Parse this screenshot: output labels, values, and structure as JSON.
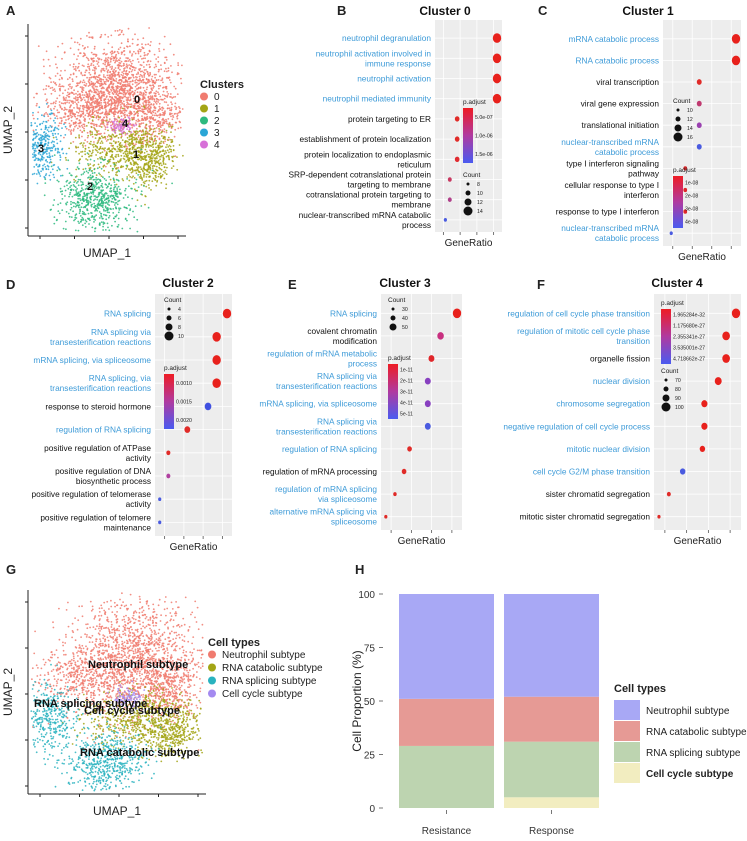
{
  "panel_labels": {
    "a": "A",
    "b": "B",
    "c": "C",
    "d": "D",
    "e": "E",
    "f": "F",
    "g": "G",
    "h": "H"
  },
  "umap_top": {
    "xlabel": "UMAP_1",
    "ylabel": "UMAP_2",
    "legend_title": "Clusters",
    "legend": [
      {
        "label": "0",
        "color": "#F07B6F"
      },
      {
        "label": "1",
        "color": "#A3A515"
      },
      {
        "label": "2",
        "color": "#2DBA7F"
      },
      {
        "label": "3",
        "color": "#2AA6D6"
      },
      {
        "label": "4",
        "color": "#D771D8"
      }
    ],
    "overlay": [
      "0",
      "1",
      "2",
      "3",
      "4"
    ]
  },
  "umap_bottom": {
    "xlabel": "UMAP_1",
    "ylabel": "UMAP_2",
    "legend_title": "Cell types",
    "legend": [
      {
        "label": "Neutrophil subtype",
        "color": "#F07B6F"
      },
      {
        "label": "RNA catabolic subtype",
        "color": "#A3A515"
      },
      {
        "label": "RNA splicing subtype",
        "color": "#2AB3BF"
      },
      {
        "label": "Cell cycle subtype",
        "color": "#A48AF0"
      }
    ],
    "overlay": [
      "Neutrophil subtype",
      "Cell cycle subtype",
      "RNA catabolic subtype",
      "RNA splicing subtype"
    ]
  },
  "chart_data": [
    {
      "type": "scatter",
      "title": "Cluster 0",
      "xlabel": "GeneRatio",
      "terms": [
        {
          "label": "neutrophil degranulation",
          "x": 4.0,
          "size": 14,
          "color": "#E8211C",
          "blue": true
        },
        {
          "label": "neutrophil activation involved in immune response",
          "x": 4.0,
          "size": 14,
          "color": "#E8211C",
          "blue": true
        },
        {
          "label": "neutrophil activation",
          "x": 4.0,
          "size": 14,
          "color": "#E8211C",
          "blue": true
        },
        {
          "label": "neutrophil mediated immunity",
          "x": 4.0,
          "size": 14,
          "color": "#E8211C",
          "blue": true
        },
        {
          "label": "protein targeting to ER",
          "x": 1.3,
          "size": 9,
          "color": "#E02B28",
          "blue": false
        },
        {
          "label": "establishment of protein localization",
          "x": 1.3,
          "size": 9,
          "color": "#E02B28",
          "blue": false
        },
        {
          "label": "protein localization to endoplasmic reticulum",
          "x": 1.3,
          "size": 9,
          "color": "#E02B30",
          "blue": false
        },
        {
          "label": "SRP-dependent cotranslational protein targeting to membrane",
          "x": 0.8,
          "size": 8,
          "color": "#C83860",
          "blue": false
        },
        {
          "label": "cotranslational protein targeting to membrane",
          "x": 0.8,
          "size": 8,
          "color": "#B0408A",
          "blue": false
        },
        {
          "label": "nuclear-transcribed mRNA catabolic process",
          "x": 0.5,
          "size": 7,
          "color": "#4A5BE0",
          "blue": false
        }
      ],
      "legend_color_title": "p.adjust",
      "legend_color_ticks": [
        "5.0e-07",
        "1.0e-06",
        "1.5e-06"
      ],
      "legend_size_title": "Count",
      "legend_size_ticks": [
        "8",
        "10",
        "12",
        "14"
      ]
    },
    {
      "type": "scatter",
      "title": "Cluster 1",
      "xlabel": "GeneRatio",
      "terms": [
        {
          "label": "mRNA catabolic process",
          "x": 4.0,
          "size": 16,
          "color": "#E8211C",
          "blue": true
        },
        {
          "label": "RNA catabolic process",
          "x": 4.0,
          "size": 16,
          "color": "#E8211C",
          "blue": true
        },
        {
          "label": "viral transcription",
          "x": 1.9,
          "size": 10,
          "color": "#E02B28",
          "blue": false
        },
        {
          "label": "viral gene expression",
          "x": 1.9,
          "size": 10,
          "color": "#C03A70",
          "blue": false
        },
        {
          "label": "translational initiation",
          "x": 1.9,
          "size": 10,
          "color": "#9A40B0",
          "blue": false
        },
        {
          "label": "nuclear-transcribed mRNA catabolic process",
          "x": 1.9,
          "size": 10,
          "color": "#4A5BE0",
          "blue": true
        },
        {
          "label": "type I interferon signaling pathway",
          "x": 1.1,
          "size": 8,
          "color": "#E0262A",
          "blue": false
        },
        {
          "label": "cellular response to type I interferon",
          "x": 1.1,
          "size": 8,
          "color": "#E0262A",
          "blue": false
        },
        {
          "label": "response to type I interferon",
          "x": 1.1,
          "size": 8,
          "color": "#E0262A",
          "blue": false
        },
        {
          "label": "nuclear-transcribed mRNA catabolic process",
          "x": 0.3,
          "size": 7,
          "color": "#4A5BE0",
          "blue": true
        }
      ],
      "legend_color_title": "p.adjust",
      "legend_color_ticks": [
        "1e-08",
        "2e-08",
        "3e-08",
        "4e-08"
      ],
      "legend_size_title": "Count",
      "legend_size_ticks": [
        "10",
        "12",
        "14",
        "16"
      ]
    },
    {
      "type": "scatter",
      "title": "Cluster 2",
      "xlabel": "GeneRatio",
      "terms": [
        {
          "label": "RNA splicing",
          "x": 4.0,
          "size": 10,
          "color": "#E8211C",
          "blue": true
        },
        {
          "label": "RNA splicing via transesterification reactions",
          "x": 3.4,
          "size": 10,
          "color": "#E8211C",
          "blue": true
        },
        {
          "label": "mRNA splicing, via spliceosome",
          "x": 3.4,
          "size": 10,
          "color": "#E8211C",
          "blue": true
        },
        {
          "label": "RNA splicing, via transesterification reactions",
          "x": 3.4,
          "size": 10,
          "color": "#E8211C",
          "blue": true
        },
        {
          "label": "response to steroid hormone",
          "x": 2.9,
          "size": 8,
          "color": "#4050E0",
          "blue": false
        },
        {
          "label": "regulation of RNA splicing",
          "x": 1.7,
          "size": 7,
          "color": "#E02B28",
          "blue": true
        },
        {
          "label": "positive regulation of ATPase activity",
          "x": 0.6,
          "size": 5,
          "color": "#E02B28",
          "blue": false
        },
        {
          "label": "positive regulation of DNA biosynthetic process",
          "x": 0.6,
          "size": 5,
          "color": "#B040A0",
          "blue": false
        },
        {
          "label": "positive regulation of telomerase activity",
          "x": 0.1,
          "size": 4,
          "color": "#4A5BE0",
          "blue": false
        },
        {
          "label": "positive regulation of telomere maintenance",
          "x": 0.1,
          "size": 4,
          "color": "#4A5BE0",
          "blue": false
        }
      ],
      "legend_color_title": "p.adjust",
      "legend_color_ticks": [
        "0.0010",
        "0.0015",
        "0.0020"
      ],
      "legend_size_title": "Count",
      "legend_size_ticks": [
        "4",
        "6",
        "8",
        "10"
      ]
    },
    {
      "type": "scatter",
      "title": "Cluster 3",
      "xlabel": "GeneRatio",
      "terms": [
        {
          "label": "RNA splicing",
          "x": 4.0,
          "size": 60,
          "color": "#E8211C",
          "blue": true
        },
        {
          "label": "covalent chromatin modification",
          "x": 3.1,
          "size": 45,
          "color": "#C83080",
          "blue": false
        },
        {
          "label": "regulation of mRNA metabolic process",
          "x": 2.6,
          "size": 40,
          "color": "#E0262A",
          "blue": true
        },
        {
          "label": "RNA splicing via transesterification reactions",
          "x": 2.4,
          "size": 40,
          "color": "#8840C0",
          "blue": true
        },
        {
          "label": "mRNA splicing, via spliceosome",
          "x": 2.4,
          "size": 40,
          "color": "#8840C0",
          "blue": true
        },
        {
          "label": "RNA splicing via transesterification reactions",
          "x": 2.4,
          "size": 40,
          "color": "#4A5BE0",
          "blue": true
        },
        {
          "label": "regulation of RNA splicing",
          "x": 1.4,
          "size": 30,
          "color": "#E02B28",
          "blue": true
        },
        {
          "label": "regulation of mRNA processing",
          "x": 1.1,
          "size": 30,
          "color": "#E02B28",
          "blue": false
        },
        {
          "label": "regulation of mRNA splicing via spliceosome",
          "x": 0.6,
          "size": 20,
          "color": "#E02B28",
          "blue": true
        },
        {
          "label": "alternative mRNA splicing via spliceosome",
          "x": 0.1,
          "size": 18,
          "color": "#E02B28",
          "blue": true
        }
      ],
      "legend_color_title": "p.adjust",
      "legend_color_ticks": [
        "1e-11",
        "2e-11",
        "3e-11",
        "4e-11",
        "5e-11"
      ],
      "legend_size_title": "Count",
      "legend_size_ticks": [
        "30",
        "40",
        "50"
      ]
    },
    {
      "type": "scatter",
      "title": "Cluster 4",
      "xlabel": "GeneRatio",
      "terms": [
        {
          "label": "regulation of cell cycle phase transition",
          "x": 4.0,
          "size": 100,
          "color": "#E8211C",
          "blue": true
        },
        {
          "label": "regulation of mitotic cell cycle phase transition",
          "x": 3.5,
          "size": 95,
          "color": "#E8211C",
          "blue": true
        },
        {
          "label": "organelle fission",
          "x": 3.5,
          "size": 95,
          "color": "#E8211C",
          "blue": false
        },
        {
          "label": "nuclear division",
          "x": 3.1,
          "size": 90,
          "color": "#E8211C",
          "blue": true
        },
        {
          "label": "chromosome segregation",
          "x": 2.4,
          "size": 85,
          "color": "#E8211C",
          "blue": true
        },
        {
          "label": "negative regulation of cell cycle process",
          "x": 2.4,
          "size": 85,
          "color": "#E8211C",
          "blue": true
        },
        {
          "label": "mitotic nuclear division",
          "x": 2.3,
          "size": 80,
          "color": "#E8211C",
          "blue": true
        },
        {
          "label": "cell cycle G2/M phase transition",
          "x": 1.3,
          "size": 80,
          "color": "#4A5BE0",
          "blue": true
        },
        {
          "label": "sister chromatid segregation",
          "x": 0.6,
          "size": 70,
          "color": "#E02B28",
          "blue": false
        },
        {
          "label": "mitotic sister chromatid segregation",
          "x": 0.1,
          "size": 65,
          "color": "#E02B28",
          "blue": false
        }
      ],
      "legend_color_title": "p.adjust",
      "legend_color_ticks": [
        "1.965284e-32",
        "1.175680e-27",
        "2.355341e-27",
        "3.535001e-27",
        "4.718662e-27"
      ],
      "legend_size_title": "Count",
      "legend_size_ticks": [
        "70",
        "80",
        "90",
        "100"
      ]
    },
    {
      "type": "bar",
      "stacked": true,
      "xlabel": "",
      "ylabel": "Cell Proportion (%)",
      "categories": [
        "Resistance",
        "Response"
      ],
      "ylim": [
        0,
        100
      ],
      "yticks": [
        "0",
        "25",
        "50",
        "75",
        "100"
      ],
      "legend_title": "Cell types",
      "series": [
        {
          "name": "Cell cycle subtype",
          "values": [
            0,
            5
          ],
          "color": "#F2EDC0",
          "emph": true
        },
        {
          "name": "RNA splicing subtype",
          "values": [
            29,
            26
          ],
          "color": "#BDD4B0",
          "emph": false
        },
        {
          "name": "RNA catabolic subtype",
          "values": [
            22,
            21
          ],
          "color": "#E69A95",
          "emph": false
        },
        {
          "name": "Neutrophil subtype",
          "values": [
            49,
            48
          ],
          "color": "#A8A8F5",
          "emph": false
        }
      ]
    }
  ]
}
